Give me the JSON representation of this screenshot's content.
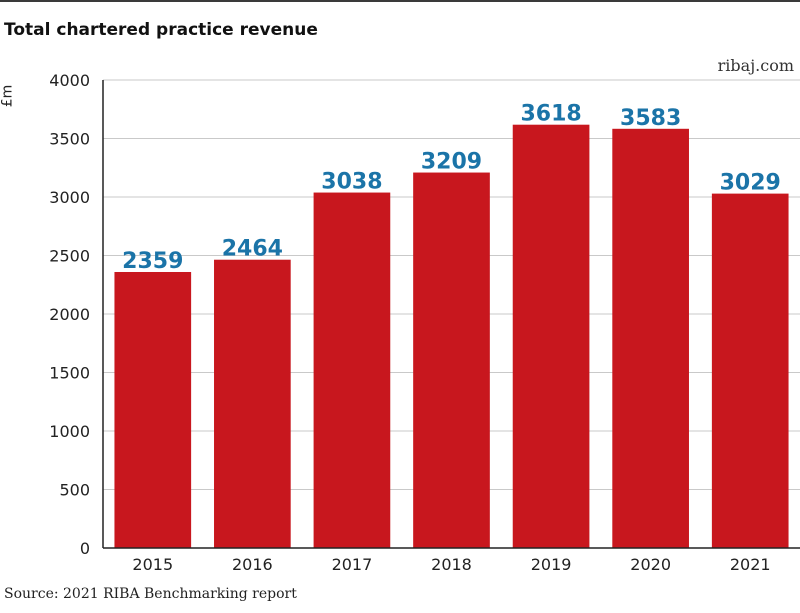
{
  "title": "Total chartered practice revenue",
  "site": "ribaj.com",
  "source": "Source: 2021 RIBA Benchmarking report",
  "colors": {
    "bar": "#c8171e",
    "label": "#1b74a8",
    "grid": "#c9c9c9"
  },
  "chart_data": {
    "type": "bar",
    "title": "Total chartered practice revenue",
    "ylabel": "£m",
    "xlabel": "",
    "categories": [
      "2015",
      "2016",
      "2017",
      "2018",
      "2019",
      "2020",
      "2021"
    ],
    "values": [
      2359,
      2464,
      3038,
      3209,
      3618,
      3583,
      3029
    ],
    "data_labels": [
      "2359",
      "2464",
      "3038",
      "3209",
      "3618",
      "3583",
      "3029"
    ],
    "yticks": [
      "0",
      "500",
      "1000",
      "1500",
      "2000",
      "2500",
      "3000",
      "3500",
      "4000"
    ],
    "ylim": [
      0,
      4000
    ],
    "grid": true
  }
}
